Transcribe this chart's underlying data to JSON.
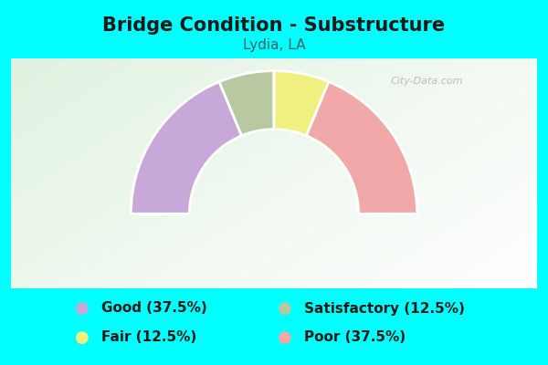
{
  "title": "Bridge Condition - Substructure",
  "subtitle": "Lydia, LA",
  "background_color": "#00FFFF",
  "chart_bg_top": "#e8f5e8",
  "chart_bg_bottom": "#f5fff5",
  "segments": [
    {
      "label": "Good",
      "pct": 37.5,
      "color": "#c8a8d8"
    },
    {
      "label": "Satisfactory",
      "pct": 12.5,
      "color": "#b8c8a0"
    },
    {
      "label": "Fair",
      "pct": 12.5,
      "color": "#f0f080"
    },
    {
      "label": "Poor",
      "pct": 37.5,
      "color": "#f0a8a8"
    }
  ],
  "legend": [
    {
      "label": "Good (37.5%)",
      "color": "#c8a8d8"
    },
    {
      "label": "Satisfactory (12.5%)",
      "color": "#b8c8a0"
    },
    {
      "label": "Fair (12.5%)",
      "color": "#f0f080"
    },
    {
      "label": "Poor (37.5%)",
      "color": "#f0a8a8"
    }
  ],
  "title_fontsize": 15,
  "subtitle_fontsize": 11,
  "legend_fontsize": 11,
  "watermark": "City-Data.com",
  "outer_r": 1.15,
  "inner_r": 0.68
}
